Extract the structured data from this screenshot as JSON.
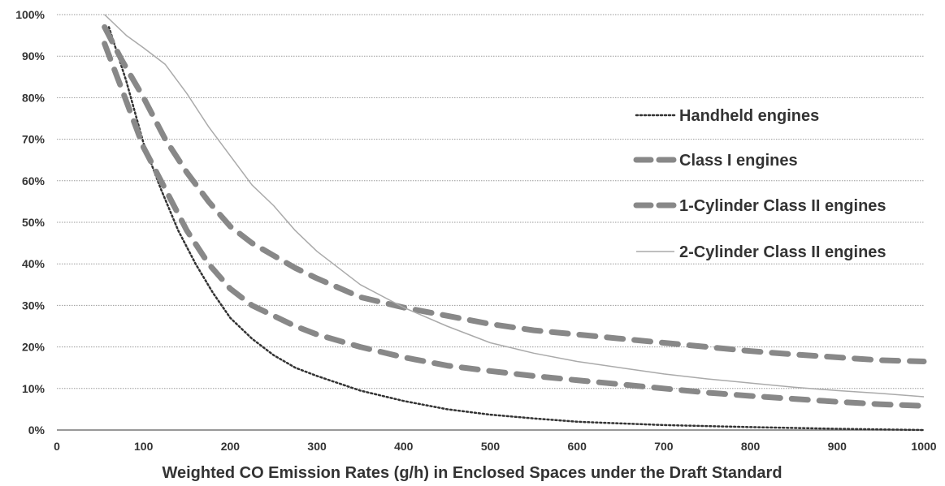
{
  "chart_data": {
    "type": "line",
    "title": "",
    "xlabel": "Weighted CO Emission Rates (g/h) in Enclosed Spaces under the Draft Standard",
    "ylabel": "",
    "xlim": [
      0,
      1000
    ],
    "ylim": [
      0,
      100
    ],
    "x_ticks": [
      "0",
      "100",
      "200",
      "300",
      "400",
      "500",
      "600",
      "700",
      "800",
      "900",
      "1000"
    ],
    "y_ticks": [
      "0%",
      "10%",
      "20%",
      "30%",
      "40%",
      "50%",
      "60%",
      "70%",
      "80%",
      "90%",
      "100%"
    ],
    "grid": "horizontal",
    "legend_position": "right",
    "series": [
      {
        "name": "Handheld engines",
        "style": "dotted",
        "color": "#333333",
        "points": [
          [
            60,
            97
          ],
          [
            80,
            84
          ],
          [
            100,
            69
          ],
          [
            120,
            58
          ],
          [
            140,
            48
          ],
          [
            160,
            40
          ],
          [
            180,
            33
          ],
          [
            200,
            27
          ],
          [
            225,
            22
          ],
          [
            250,
            18
          ],
          [
            275,
            15
          ],
          [
            300,
            13
          ],
          [
            350,
            9.5
          ],
          [
            400,
            7
          ],
          [
            450,
            5
          ],
          [
            500,
            3.7
          ],
          [
            550,
            2.8
          ],
          [
            600,
            2
          ],
          [
            700,
            1.2
          ],
          [
            800,
            0.7
          ],
          [
            900,
            0.3
          ],
          [
            1000,
            0
          ]
        ]
      },
      {
        "name": "Class I engines",
        "style": "dashed",
        "color": "#888888",
        "points": [
          [
            55,
            97
          ],
          [
            75,
            89
          ],
          [
            100,
            80
          ],
          [
            125,
            70
          ],
          [
            150,
            62
          ],
          [
            175,
            55
          ],
          [
            200,
            49
          ],
          [
            225,
            45
          ],
          [
            250,
            42
          ],
          [
            275,
            39
          ],
          [
            300,
            36.5
          ],
          [
            350,
            32
          ],
          [
            400,
            29.5
          ],
          [
            450,
            27.5
          ],
          [
            500,
            25.5
          ],
          [
            550,
            24
          ],
          [
            600,
            23
          ],
          [
            650,
            22
          ],
          [
            700,
            21
          ],
          [
            750,
            20
          ],
          [
            800,
            19
          ],
          [
            850,
            18.2
          ],
          [
            900,
            17.5
          ],
          [
            950,
            16.8
          ],
          [
            1000,
            16.5
          ]
        ]
      },
      {
        "name": "1-Cylinder Class II engines",
        "style": "dashed",
        "color": "#888888",
        "points": [
          [
            55,
            93
          ],
          [
            75,
            82
          ],
          [
            100,
            68
          ],
          [
            125,
            58
          ],
          [
            150,
            48
          ],
          [
            175,
            40
          ],
          [
            200,
            34
          ],
          [
            225,
            30
          ],
          [
            250,
            27.5
          ],
          [
            275,
            25
          ],
          [
            300,
            23
          ],
          [
            350,
            20
          ],
          [
            400,
            17.5
          ],
          [
            450,
            15.5
          ],
          [
            500,
            14.2
          ],
          [
            550,
            13
          ],
          [
            600,
            12
          ],
          [
            650,
            11
          ],
          [
            700,
            10
          ],
          [
            750,
            9
          ],
          [
            800,
            8.2
          ],
          [
            850,
            7.5
          ],
          [
            900,
            6.8
          ],
          [
            950,
            6.2
          ],
          [
            1000,
            5.8
          ]
        ]
      },
      {
        "name": "2-Cylinder Class II engines",
        "style": "solid",
        "color": "#aaaaaa",
        "points": [
          [
            55,
            100
          ],
          [
            80,
            95
          ],
          [
            100,
            92
          ],
          [
            125,
            88
          ],
          [
            150,
            81
          ],
          [
            175,
            73
          ],
          [
            200,
            66
          ],
          [
            225,
            59
          ],
          [
            250,
            54
          ],
          [
            275,
            48
          ],
          [
            300,
            43
          ],
          [
            350,
            35
          ],
          [
            400,
            29.5
          ],
          [
            450,
            25
          ],
          [
            500,
            21
          ],
          [
            550,
            18.5
          ],
          [
            600,
            16.5
          ],
          [
            650,
            15
          ],
          [
            700,
            13.5
          ],
          [
            750,
            12.3
          ],
          [
            800,
            11.3
          ],
          [
            850,
            10.3
          ],
          [
            900,
            9.5
          ],
          [
            950,
            8.8
          ],
          [
            1000,
            8
          ]
        ]
      }
    ]
  }
}
